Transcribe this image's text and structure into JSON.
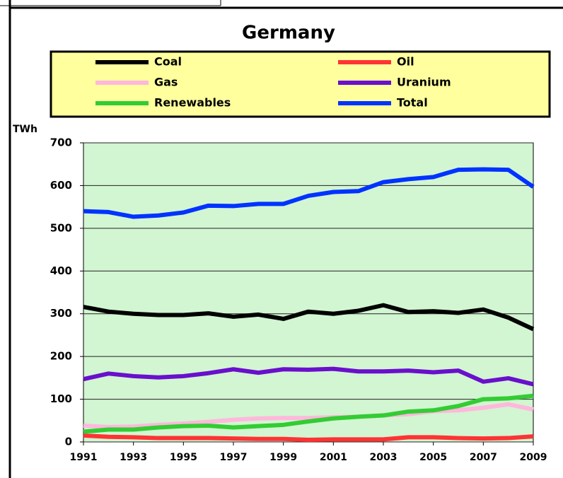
{
  "chart_data": {
    "type": "line",
    "title": "Germany",
    "y_label": "TWh",
    "x": [
      1991,
      1992,
      1993,
      1994,
      1995,
      1996,
      1997,
      1998,
      1999,
      2000,
      2001,
      2002,
      2003,
      2004,
      2005,
      2006,
      2007,
      2008,
      2009
    ],
    "xlim": [
      1991,
      2009
    ],
    "xticks": [
      1991,
      1993,
      1995,
      1997,
      1999,
      2001,
      2003,
      2005,
      2007,
      2009
    ],
    "ylim": [
      0,
      700
    ],
    "yticks": [
      0,
      100,
      200,
      300,
      400,
      500,
      600,
      700
    ],
    "grid": true,
    "series": [
      {
        "name": "Coal",
        "color": "#000000",
        "values": [
          316,
          305,
          300,
          297,
          297,
          301,
          293,
          298,
          288,
          305,
          300,
          307,
          320,
          304,
          306,
          302,
          310,
          291,
          264
        ]
      },
      {
        "name": "Oil",
        "color": "#ff3333",
        "values": [
          15,
          12,
          11,
          9,
          9,
          9,
          8,
          7,
          7,
          5,
          6,
          6,
          6,
          11,
          11,
          9,
          8,
          9,
          13
        ]
      },
      {
        "name": "Gas",
        "color": "#ffb8dc",
        "values": [
          38,
          35,
          36,
          40,
          43,
          47,
          52,
          55,
          56,
          56,
          58,
          59,
          62,
          65,
          72,
          74,
          80,
          88,
          76
        ]
      },
      {
        "name": "Uranium",
        "color": "#6a0fcc",
        "values": [
          147,
          160,
          154,
          151,
          154,
          161,
          170,
          162,
          170,
          169,
          171,
          165,
          165,
          167,
          163,
          167,
          141,
          149,
          135
        ]
      },
      {
        "name": "Renewables",
        "color": "#33cc33",
        "values": [
          24,
          29,
          29,
          34,
          37,
          38,
          34,
          37,
          40,
          48,
          55,
          59,
          62,
          71,
          74,
          84,
          100,
          102,
          108
        ]
      },
      {
        "name": "Total",
        "color": "#0033ff",
        "values": [
          540,
          538,
          527,
          530,
          537,
          553,
          552,
          557,
          557,
          576,
          585,
          587,
          608,
          615,
          620,
          637,
          638,
          637,
          597
        ]
      }
    ]
  }
}
